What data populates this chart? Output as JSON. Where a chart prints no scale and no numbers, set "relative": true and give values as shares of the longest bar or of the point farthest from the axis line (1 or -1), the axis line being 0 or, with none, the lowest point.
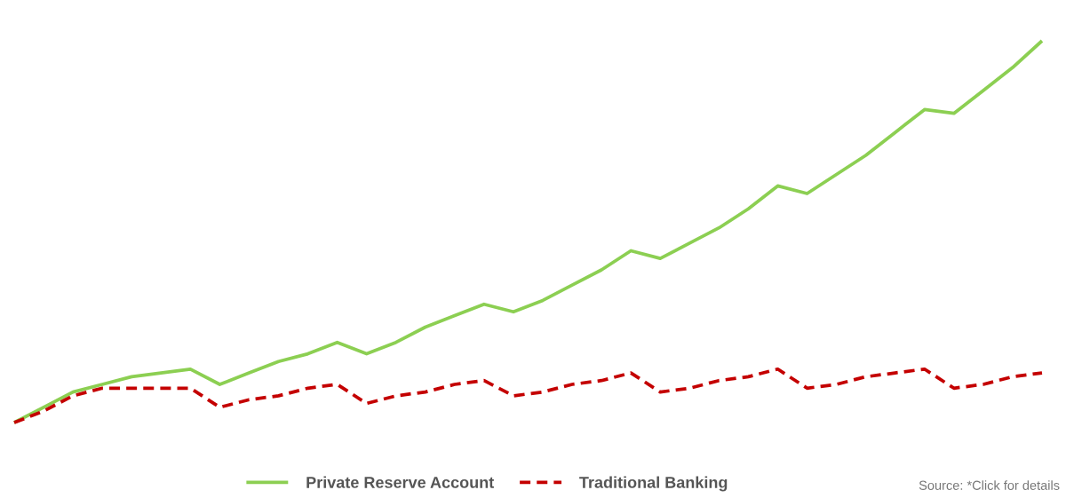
{
  "chart_data": {
    "type": "line",
    "relative": true,
    "categories": [
      null,
      null,
      null,
      null,
      null,
      null,
      null,
      null,
      null,
      null,
      null,
      null,
      null,
      null,
      null,
      null,
      null,
      null,
      null,
      null,
      null,
      null,
      null,
      null,
      null,
      null,
      null,
      null,
      null,
      null,
      null,
      null,
      null,
      null,
      null,
      null
    ],
    "series": [
      {
        "name": "Private Reserve Account",
        "color": "#8ccf52",
        "line_style": "solid",
        "values": [
          0.0,
          0.04,
          0.08,
          0.1,
          0.12,
          0.13,
          0.14,
          0.1,
          0.13,
          0.16,
          0.18,
          0.21,
          0.18,
          0.21,
          0.25,
          0.28,
          0.31,
          0.29,
          0.32,
          0.36,
          0.4,
          0.45,
          0.43,
          0.47,
          0.51,
          0.56,
          0.62,
          0.6,
          0.65,
          0.7,
          0.76,
          0.82,
          0.81,
          0.87,
          0.93,
          1.0
        ]
      },
      {
        "name": "Traditional Banking",
        "color": "#c40000",
        "line_style": "dashed",
        "values": [
          0.0,
          0.03,
          0.07,
          0.09,
          0.09,
          0.09,
          0.09,
          0.04,
          0.06,
          0.07,
          0.09,
          0.1,
          0.05,
          0.07,
          0.08,
          0.1,
          0.11,
          0.07,
          0.08,
          0.1,
          0.11,
          0.13,
          0.08,
          0.09,
          0.11,
          0.12,
          0.14,
          0.09,
          0.1,
          0.12,
          0.13,
          0.14,
          0.09,
          0.1,
          0.12,
          0.13
        ]
      }
    ],
    "legend": "bottom",
    "annotations": [
      "Source: *Click for details"
    ]
  }
}
